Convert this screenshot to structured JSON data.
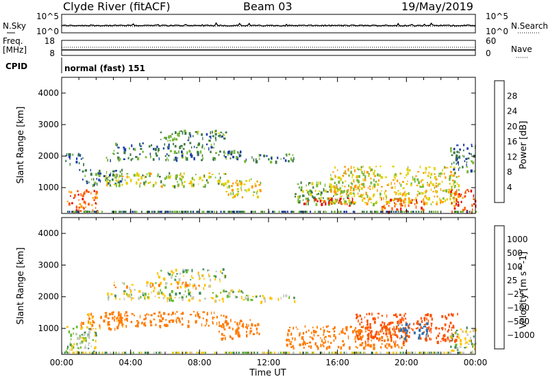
{
  "header": {
    "station": "Clyde River (fitACF)",
    "beam": "Beam 03",
    "date": "19/May/2019"
  },
  "noise_panel": {
    "left_label": "N.Sky",
    "right_label": "N.Search",
    "left_ticks": [
      "10^5",
      "10^0"
    ],
    "right_ticks": [
      "10^5",
      "10^0"
    ]
  },
  "freq_panel": {
    "left_label_line1": "Freq.",
    "left_label_line2": "[MHz]",
    "right_label": "Nave",
    "left_ticks": [
      "18",
      "8"
    ],
    "right_ticks": [
      "60",
      "0"
    ]
  },
  "cpid_panel": {
    "label": "CPID",
    "value": "normal (fast) 151"
  },
  "chart_data": [
    {
      "type": "heatmap",
      "name": "power",
      "ylabel": "Slant Range [km]",
      "xlabel": "",
      "ylim": [
        180,
        4500
      ],
      "xlim_hours": [
        0,
        24
      ],
      "y_ticks": [
        "1000",
        "2000",
        "3000",
        "4000"
      ],
      "colorbar": {
        "label": "Power [dB]",
        "tick_labels": [
          "4",
          "8",
          "12",
          "16",
          "20",
          "24",
          "28"
        ],
        "colors": [
          "#0019ff",
          "#1d3ea8",
          "#3a7a46",
          "#7ab83a",
          "#e0d000",
          "#ff9b00",
          "#ff5a00",
          "#e80000"
        ]
      },
      "regions": [
        {
          "t": [
            0.3,
            2.1
          ],
          "r": [
            250,
            950
          ],
          "level": 26
        },
        {
          "t": [
            0.2,
            1.4
          ],
          "r": [
            1750,
            2100
          ],
          "level": 7
        },
        {
          "t": [
            1.0,
            3.5
          ],
          "r": [
            1100,
            1600
          ],
          "level": 9
        },
        {
          "t": [
            2.5,
            9.5
          ],
          "r": [
            1050,
            1500
          ],
          "level": 16
        },
        {
          "t": [
            2.5,
            10.5
          ],
          "r": [
            1900,
            2200
          ],
          "level": 10
        },
        {
          "t": [
            3.0,
            9.0
          ],
          "r": [
            2250,
            2450
          ],
          "level": 9
        },
        {
          "t": [
            5.5,
            9.5
          ],
          "r": [
            2500,
            2850
          ],
          "level": 12
        },
        {
          "t": [
            9.5,
            11.5
          ],
          "r": [
            700,
            1300
          ],
          "level": 18
        },
        {
          "t": [
            10.5,
            13.5
          ],
          "r": [
            1850,
            2100
          ],
          "level": 11
        },
        {
          "t": [
            13.5,
            17.0
          ],
          "r": [
            500,
            1200
          ],
          "level": 14
        },
        {
          "t": [
            14.0,
            17.0
          ],
          "r": [
            450,
            700
          ],
          "level": 29
        },
        {
          "t": [
            15.5,
            23.0
          ],
          "r": [
            500,
            1700
          ],
          "level": 19
        },
        {
          "t": [
            18.5,
            21.0
          ],
          "r": [
            250,
            700
          ],
          "level": 25
        },
        {
          "t": [
            22.5,
            24.0
          ],
          "r": [
            250,
            1000
          ],
          "level": 27
        },
        {
          "t": [
            22.5,
            24.0
          ],
          "r": [
            1500,
            2400
          ],
          "level": 9
        }
      ]
    },
    {
      "type": "heatmap",
      "name": "velocity",
      "ylabel": "Slant Range [km]",
      "xlabel": "Time UT",
      "ylim": [
        180,
        4500
      ],
      "xlim_hours": [
        0,
        24
      ],
      "x_ticks": [
        "00:00",
        "04:00",
        "08:00",
        "12:00",
        "16:00",
        "20:00",
        "00:00"
      ],
      "y_ticks": [
        "1000",
        "2000",
        "3000",
        "4000"
      ],
      "colorbar": {
        "label": "Velocity [m s^-1]",
        "tick_labels": [
          "1000",
          "500",
          "100",
          "25",
          "−25",
          "−100",
          "−500",
          "−1000"
        ],
        "colors": [
          "#1a3a9f",
          "#2f6fb0",
          "#3f8a5a",
          "#66bb33",
          "#c8c8c0",
          "#ffc400",
          "#ff7a00",
          "#ff5000",
          "#e80000"
        ]
      },
      "regions": [
        {
          "t": [
            0.2,
            2.0
          ],
          "r": [
            250,
            1100
          ],
          "vel": 0
        },
        {
          "t": [
            1.0,
            3.5
          ],
          "r": [
            1000,
            1500
          ],
          "vel": -150
        },
        {
          "t": [
            2.5,
            9.5
          ],
          "r": [
            1100,
            1550
          ],
          "vel": -400
        },
        {
          "t": [
            2.5,
            10.5
          ],
          "r": [
            1900,
            2250
          ],
          "vel": 0
        },
        {
          "t": [
            3.0,
            9.0
          ],
          "r": [
            2300,
            2500
          ],
          "vel": -60
        },
        {
          "t": [
            5.5,
            9.5
          ],
          "r": [
            2550,
            2900
          ],
          "vel": 0
        },
        {
          "t": [
            9.0,
            11.5
          ],
          "r": [
            700,
            1300
          ],
          "vel": -400
        },
        {
          "t": [
            10.5,
            13.5
          ],
          "r": [
            1850,
            2100
          ],
          "vel": 0
        },
        {
          "t": [
            13.0,
            20.0
          ],
          "r": [
            400,
            1100
          ],
          "vel": -400
        },
        {
          "t": [
            17.0,
            23.0
          ],
          "r": [
            600,
            1500
          ],
          "vel": -600
        },
        {
          "t": [
            19.5,
            21.2
          ],
          "r": [
            700,
            1200
          ],
          "vel": 400
        },
        {
          "t": [
            22.5,
            24.0
          ],
          "r": [
            300,
            1100
          ],
          "vel": 0
        }
      ]
    }
  ]
}
